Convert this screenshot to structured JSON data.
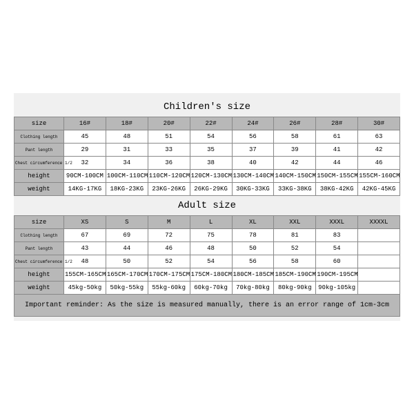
{
  "children": {
    "title": "Children's size",
    "columns": [
      "size",
      "16#",
      "18#",
      "20#",
      "22#",
      "24#",
      "26#",
      "28#",
      "30#"
    ],
    "rows": [
      {
        "label": "Clothing length",
        "label_class": "small-label",
        "cells": [
          "45",
          "48",
          "51",
          "54",
          "56",
          "58",
          "61",
          "63"
        ]
      },
      {
        "label": "Pant length",
        "label_class": "small-label",
        "cells": [
          "29",
          "31",
          "33",
          "35",
          "37",
          "39",
          "41",
          "42"
        ]
      },
      {
        "label": "Chest circumference 1/2",
        "label_class": "small-label",
        "cells": [
          "32",
          "34",
          "36",
          "38",
          "40",
          "42",
          "44",
          "46"
        ]
      },
      {
        "label": "height",
        "label_class": "",
        "cells": [
          "90CM-100CM",
          "100CM-110CM",
          "110CM-120CM",
          "120CM-130CM",
          "130CM-140CM",
          "140CM-150CM",
          "150CM-155CM",
          "155CM-160CM"
        ]
      },
      {
        "label": "weight",
        "label_class": "",
        "cells": [
          "14KG-17KG",
          "18KG-23KG",
          "23KG-26KG",
          "26KG-29KG",
          "30KG-33KG",
          "33KG-38KG",
          "38KG-42KG",
          "42KG-45KG"
        ]
      }
    ]
  },
  "adult": {
    "title": "Adult size",
    "columns": [
      "size",
      "XS",
      "S",
      "M",
      "L",
      "XL",
      "XXL",
      "XXXL",
      "XXXXL"
    ],
    "rows": [
      {
        "label": "Clothing length",
        "label_class": "small-label",
        "cells": [
          "67",
          "69",
          "72",
          "75",
          "78",
          "81",
          "83",
          ""
        ]
      },
      {
        "label": "Pant length",
        "label_class": "small-label",
        "cells": [
          "43",
          "44",
          "46",
          "48",
          "50",
          "52",
          "54",
          ""
        ]
      },
      {
        "label": "Chest circumference 1/2",
        "label_class": "small-label",
        "cells": [
          "48",
          "50",
          "52",
          "54",
          "56",
          "58",
          "60",
          ""
        ]
      },
      {
        "label": "height",
        "label_class": "",
        "cells": [
          "155CM-165CM",
          "165CM-170CM",
          "170CM-175CM",
          "175CM-180CM",
          "180CM-185CM",
          "185CM-190CM",
          "190CM-195CM",
          ""
        ]
      },
      {
        "label": "weight",
        "label_class": "",
        "cells": [
          "45kg-50kg",
          "50kg-55kg",
          "55kg-60kg",
          "60kg-70kg",
          "70kg-80kg",
          "80kg-90kg",
          "90kg-105kg",
          ""
        ]
      }
    ]
  },
  "reminder": "Important reminder: As the size is measured manually, there is an error range of 1cm-3cm"
}
